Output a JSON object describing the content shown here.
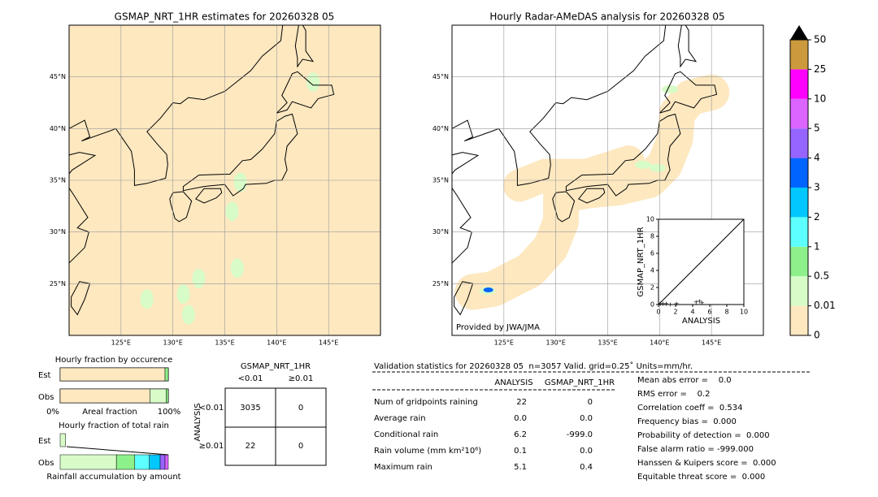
{
  "left_map": {
    "title": "GSMAP_NRT_1HR estimates for 20260328 05",
    "lon_lim": [
      120,
      150
    ],
    "lat_lim": [
      20,
      50
    ],
    "lat_ticks": [
      {
        "value": 45,
        "label": "45°N"
      },
      {
        "value": 40,
        "label": "40°N"
      },
      {
        "value": 35,
        "label": "35°N"
      },
      {
        "value": 30,
        "label": "30°N"
      },
      {
        "value": 25,
        "label": "25°N"
      }
    ],
    "lon_ticks": [
      {
        "value": 125,
        "label": "125°E"
      },
      {
        "value": 130,
        "label": "130°E"
      },
      {
        "value": 135,
        "label": "135°E"
      },
      {
        "value": 140,
        "label": "140°E"
      },
      {
        "value": 145,
        "label": "145°E"
      }
    ]
  },
  "right_map": {
    "title": "Hourly Radar-AMeDAS analysis for 20260328 05",
    "credit": "Provided by JWA/JMA",
    "lon_lim": [
      120,
      150
    ],
    "lat_lim": [
      20,
      50
    ],
    "lat_ticks": [
      {
        "value": 45,
        "label": "45°N"
      },
      {
        "value": 40,
        "label": "40°N"
      },
      {
        "value": 35,
        "label": "35°N"
      },
      {
        "value": 30,
        "label": "30°N"
      },
      {
        "value": 25,
        "label": "25°N"
      }
    ],
    "lon_ticks": [
      {
        "value": 125,
        "label": "125°E"
      },
      {
        "value": 130,
        "label": "130°E"
      },
      {
        "value": 135,
        "label": "135°E"
      },
      {
        "value": 140,
        "label": "140°E"
      },
      {
        "value": 145,
        "label": "145°E"
      }
    ]
  },
  "colorbar": {
    "levels": [
      0,
      0.01,
      0.5,
      1,
      2,
      3,
      4,
      5,
      10,
      25,
      50
    ],
    "colors": [
      "#fde8c0",
      "#d8fcc8",
      "#8ef08a",
      "#5effff",
      "#00c8ff",
      "#0064ff",
      "#9664ff",
      "#dc64ff",
      "#ff00ff",
      "#cc9a3c"
    ]
  },
  "scatter": {
    "xlabel": "ANALYSIS",
    "ylabel": "GSMAP_NRT_1HR",
    "xlim": [
      0,
      10
    ],
    "ylim": [
      0,
      10
    ],
    "xticks": [
      0,
      2,
      4,
      6,
      8,
      10
    ],
    "yticks": [
      0,
      2,
      4,
      6,
      8,
      10
    ],
    "x": [
      0.2,
      0.5,
      0.9,
      1.4,
      2.1,
      4.4,
      4.8,
      5.1
    ],
    "y": [
      0.1,
      0.1,
      0.1,
      0.0,
      0.1,
      0.3,
      0.4,
      0.2
    ]
  },
  "occurrence": {
    "title": "Hourly fraction by occurence",
    "est_label": "Est",
    "obs_label": "Obs",
    "axis_min": "0%",
    "axis_label": "Areal fraction",
    "axis_max": "100%",
    "est": {
      "values": [
        97,
        3
      ],
      "colors": [
        "#fde8c0",
        "#8ef08a"
      ]
    },
    "obs": {
      "values": [
        83,
        15,
        2
      ],
      "colors": [
        "#fde8c0",
        "#d8fcc8",
        "#8ef08a"
      ]
    }
  },
  "total_rain": {
    "title": "Hourly fraction of total rain",
    "est_label": "Est",
    "obs_label": "Obs",
    "axis_label": "Rainfall accumulation by amount",
    "est": {
      "values": [
        5
      ],
      "colors": [
        "#d8fcc8"
      ]
    },
    "obs": {
      "values": [
        52,
        17,
        13.5,
        10,
        4.5,
        3
      ],
      "colors": [
        "#d8fcc8",
        "#8ef08a",
        "#5effff",
        "#00c8ff",
        "#9664ff",
        "#dc64ff"
      ]
    }
  },
  "contingency": {
    "col_title": "GSMAP_NRT_1HR",
    "col_labels": [
      "<0.01",
      "≥0.01"
    ],
    "row_title": "ANALYSIS",
    "row_labels": [
      "<0.01",
      "≥0.01"
    ],
    "cells": [
      [
        3035,
        0
      ],
      [
        22,
        0
      ]
    ]
  },
  "stats": {
    "header": "Validation statistics for 20260328 05  n=3057 Valid. grid=0.25˚ Units=mm/hr.",
    "columns": [
      "ANALYSIS",
      "GSMAP_NRT_1HR"
    ],
    "rows": [
      {
        "label": "Num of gridpoints raining",
        "analysis": "22",
        "gsmap": "0"
      },
      {
        "label": "Average rain",
        "analysis": "0.0",
        "gsmap": "0.0"
      },
      {
        "label": "Conditional rain",
        "analysis": "6.2",
        "gsmap": "-999.0"
      },
      {
        "label": "Rain volume (mm km²10⁶)",
        "analysis": "0.1",
        "gsmap": "0.0"
      },
      {
        "label": "Maximum rain",
        "analysis": "5.1",
        "gsmap": "0.4"
      }
    ],
    "scores": [
      "Mean abs error =    0.0",
      "RMS error =    0.2",
      "Correlation coeff =  0.534",
      "Frequency bias =  0.000",
      "Probability of detection =  0.000",
      "False alarm ratio = -999.000",
      "Hanssen & Kuipers score =  0.000",
      "Equitable threat score =  0.000"
    ]
  }
}
